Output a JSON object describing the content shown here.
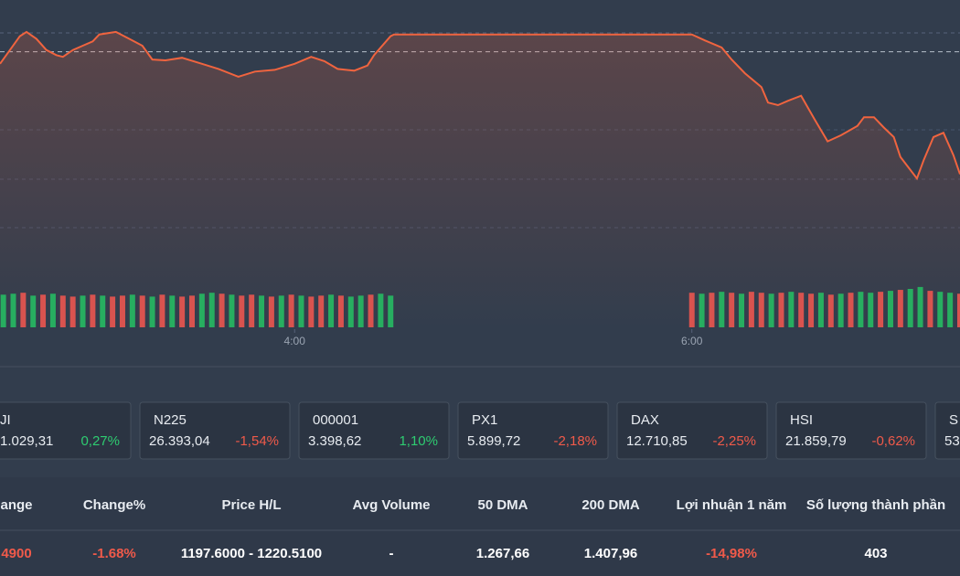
{
  "chart_data": {
    "type": "line",
    "x": [
      151,
      154,
      157,
      159,
      162,
      165,
      168,
      170,
      173,
      176,
      179,
      181,
      186,
      190,
      194,
      197,
      201,
      206,
      212,
      217,
      223,
      228,
      234,
      240,
      245,
      249,
      253,
      258,
      262,
      264,
      269,
      270,
      360,
      364,
      369,
      372,
      376,
      381,
      383,
      386,
      389,
      393,
      397,
      401,
      405,
      410,
      412,
      415,
      418,
      421,
      423,
      428,
      430,
      433,
      436,
      439,
      441
    ],
    "series": [
      {
        "color": "#f0643f",
        "values": [
          1217.6,
          1219.2,
          1220.8,
          1221.3,
          1220.5,
          1219.2,
          1218.6,
          1218.4,
          1219.2,
          1219.7,
          1220.2,
          1221.0,
          1221.3,
          1220.5,
          1219.7,
          1218.1,
          1218.0,
          1218.3,
          1217.6,
          1217.0,
          1216.1,
          1216.7,
          1216.9,
          1217.6,
          1218.4,
          1217.9,
          1217.0,
          1216.8,
          1217.4,
          1218.6,
          1220.8,
          1221.0,
          1221.0,
          1220.3,
          1219.5,
          1218.1,
          1216.5,
          1214.9,
          1213.1,
          1212.8,
          1213.3,
          1213.9,
          1211.2,
          1208.6,
          1209.3,
          1210.4,
          1211.4,
          1211.4,
          1210.2,
          1209.1,
          1206.8,
          1204.3,
          1206.4,
          1209.1,
          1209.6,
          1207.0,
          1204.8
        ]
      }
    ],
    "xlim": [
      151,
      441
    ],
    "ylim": [
      1190,
      1225
    ],
    "xticks": [
      {
        "value": 240,
        "label": "4:00"
      },
      {
        "value": 360,
        "label": "6:00"
      }
    ],
    "reference": 1219,
    "volume": {
      "x": [
        152,
        155,
        158,
        161,
        164,
        167,
        170,
        173,
        176,
        179,
        182,
        185,
        188,
        191,
        194,
        197,
        200,
        203,
        206,
        209,
        212,
        215,
        218,
        221,
        224,
        227,
        230,
        233,
        236,
        239,
        242,
        245,
        248,
        251,
        254,
        257,
        260,
        263,
        266,
        269,
        360,
        363,
        366,
        369,
        372,
        375,
        378,
        381,
        384,
        387,
        390,
        393,
        396,
        399,
        402,
        405,
        408,
        411,
        414,
        417,
        420,
        423,
        426,
        429,
        432,
        435,
        438,
        441
      ],
      "values": [
        34,
        35,
        36,
        33,
        34,
        35,
        33,
        32,
        33,
        34,
        33,
        32,
        33,
        34,
        33,
        32,
        34,
        33,
        32,
        33,
        35,
        36,
        35,
        34,
        33,
        34,
        33,
        32,
        33,
        34,
        33,
        32,
        33,
        34,
        33,
        32,
        33,
        34,
        35,
        33,
        36,
        35,
        36,
        37,
        36,
        35,
        37,
        36,
        35,
        36,
        37,
        36,
        35,
        36,
        34,
        35,
        36,
        37,
        36,
        37,
        38,
        39,
        40,
        42,
        38,
        37,
        36,
        35
      ],
      "colors": [
        "#27ae60",
        "#27ae60",
        "#d9534f",
        "#27ae60",
        "#d9534f",
        "#27ae60",
        "#d9534f",
        "#d9534f",
        "#27ae60",
        "#d9534f",
        "#27ae60",
        "#d9534f",
        "#d9534f",
        "#27ae60",
        "#d9534f",
        "#27ae60",
        "#d9534f",
        "#27ae60",
        "#d9534f",
        "#d9534f",
        "#27ae60",
        "#27ae60",
        "#d9534f",
        "#27ae60",
        "#d9534f",
        "#d9534f",
        "#27ae60",
        "#d9534f",
        "#27ae60",
        "#d9534f",
        "#27ae60",
        "#d9534f",
        "#d9534f",
        "#27ae60",
        "#d9534f",
        "#27ae60",
        "#27ae60",
        "#d9534f",
        "#27ae60",
        "#27ae60",
        "#d9534f",
        "#27ae60",
        "#d9534f",
        "#27ae60",
        "#d9534f",
        "#27ae60",
        "#d9534f",
        "#d9534f",
        "#27ae60",
        "#d9534f",
        "#27ae60",
        "#d9534f",
        "#d9534f",
        "#27ae60",
        "#d9534f",
        "#27ae60",
        "#d9534f",
        "#27ae60",
        "#27ae60",
        "#d9534f",
        "#27ae60",
        "#d9534f",
        "#27ae60",
        "#27ae60",
        "#d9534f",
        "#27ae60",
        "#27ae60",
        "#d9534f"
      ],
      "ylim": [
        0,
        40
      ]
    }
  },
  "indices": [
    {
      "name": "JI",
      "value": "1.029,31",
      "change": "0,27%",
      "color": "#2ecc71"
    },
    {
      "name": "N225",
      "value": "26.393,04",
      "change": "-1,54%",
      "color": "#f05a4a"
    },
    {
      "name": "000001",
      "value": "3.398,62",
      "change": "1,10%",
      "color": "#2ecc71"
    },
    {
      "name": "PX1",
      "value": "5.899,72",
      "change": "-2,18%",
      "color": "#f05a4a"
    },
    {
      "name": "DAX",
      "value": "12.710,85",
      "change": "-2,25%",
      "color": "#f05a4a"
    },
    {
      "name": "HSI",
      "value": "21.859,79",
      "change": "-0,62%",
      "color": "#f05a4a"
    },
    {
      "name": "S",
      "value": "53",
      "change": "",
      "color": "#2ecc71"
    }
  ],
  "table": {
    "headers": [
      "ange",
      "Change%",
      "Price H/L",
      "Avg Volume",
      "50 DMA",
      "200 DMA",
      "Lợi nhuận 1 năm",
      "Số lượng thành phần"
    ],
    "rows": [
      [
        {
          "text": "4900",
          "color": "#f05a4a"
        },
        {
          "text": "-1.68%",
          "color": "#f05a4a"
        },
        {
          "text": "1197.6000 - 1220.5100",
          "color": "#ffffff"
        },
        {
          "text": "-",
          "color": "#ffffff"
        },
        {
          "text": "1.267,66",
          "color": "#ffffff"
        },
        {
          "text": "1.407,96",
          "color": "#ffffff"
        },
        {
          "text": "-14,98%",
          "color": "#f05a4a"
        },
        {
          "text": "403",
          "color": "#ffffff"
        }
      ]
    ]
  }
}
